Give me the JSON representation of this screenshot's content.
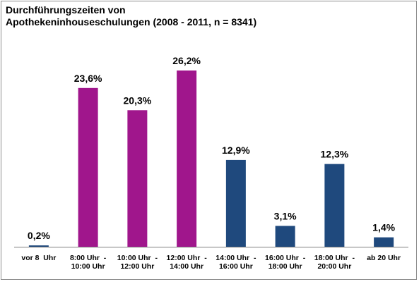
{
  "chart_data": {
    "type": "bar",
    "title_lines": [
      "Durchführungszeiten von",
      "Apothekeninhouseschulungen (2008 - 2011, n = 8341)"
    ],
    "categories": [
      [
        "vor 8  Uhr"
      ],
      [
        "8:00 Uhr  -",
        "10:00 Uhr"
      ],
      [
        "10:00 Uhr  -",
        "12:00 Uhr"
      ],
      [
        "12:00 Uhr  -",
        "14:00 Uhr"
      ],
      [
        "14:00 Uhr  -",
        "16:00 Uhr"
      ],
      [
        "16:00 Uhr  -",
        "18:00 Uhr"
      ],
      [
        "18:00 Uhr  -",
        "20:00 Uhr"
      ],
      [
        "ab 20 Uhr"
      ]
    ],
    "values": [
      0.2,
      23.6,
      20.3,
      26.2,
      12.9,
      3.1,
      12.3,
      1.4
    ],
    "value_labels": [
      "0,2%",
      "23,6%",
      "20,3%",
      "26,2%",
      "12,9%",
      "3,1%",
      "12,3%",
      "1,4%"
    ],
    "bar_colors": [
      "#1f497d",
      "#a0168c",
      "#a0168c",
      "#a0168c",
      "#1f497d",
      "#1f497d",
      "#1f497d",
      "#1f497d"
    ],
    "ylim": [
      0,
      26.2
    ],
    "grid": false,
    "legend": "none"
  }
}
